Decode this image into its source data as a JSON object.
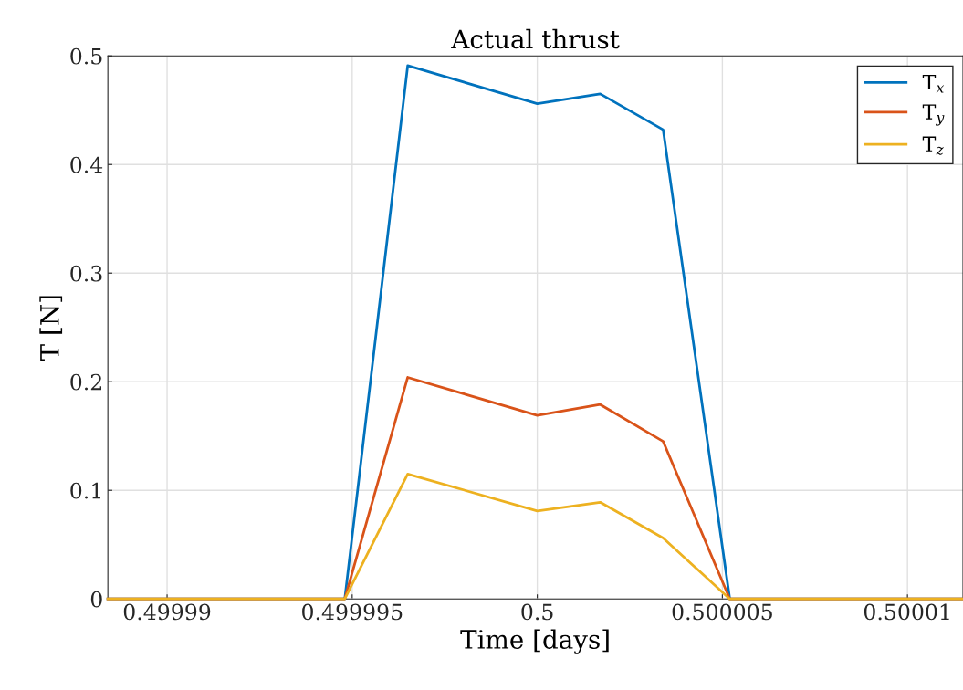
{
  "chart_data": {
    "type": "line",
    "title": "Actual thrust",
    "xlabel": "Time [days]",
    "ylabel": "T [N]",
    "x": [
      0.4999884,
      0.4999948,
      0.4999965,
      0.5,
      0.5000017,
      0.5000034,
      0.5000052,
      0.5000115
    ],
    "series": [
      {
        "name": "T$_{x}$",
        "color": "#0072bd",
        "values": [
          0,
          0,
          0.491,
          0.456,
          0.465,
          0.432,
          0,
          0
        ]
      },
      {
        "name": "T$_{y}$",
        "color": "#d95319",
        "values": [
          0,
          0,
          0.204,
          0.169,
          0.179,
          0.145,
          0,
          0
        ]
      },
      {
        "name": "T$_{z}$",
        "color": "#edb120",
        "values": [
          0,
          0,
          0.115,
          0.081,
          0.089,
          0.056,
          0,
          0
        ]
      }
    ],
    "xlim": [
      0.4999884,
      0.5000115
    ],
    "xticks": [
      0.49999,
      0.499995,
      0.5,
      0.500005,
      0.50001
    ],
    "ylim": [
      0,
      0.5
    ],
    "yticks": [
      0,
      0.1,
      0.2,
      0.3,
      0.4,
      0.5
    ],
    "grid": true,
    "legend": "top right",
    "marker": "none",
    "line_style": "solid"
  }
}
